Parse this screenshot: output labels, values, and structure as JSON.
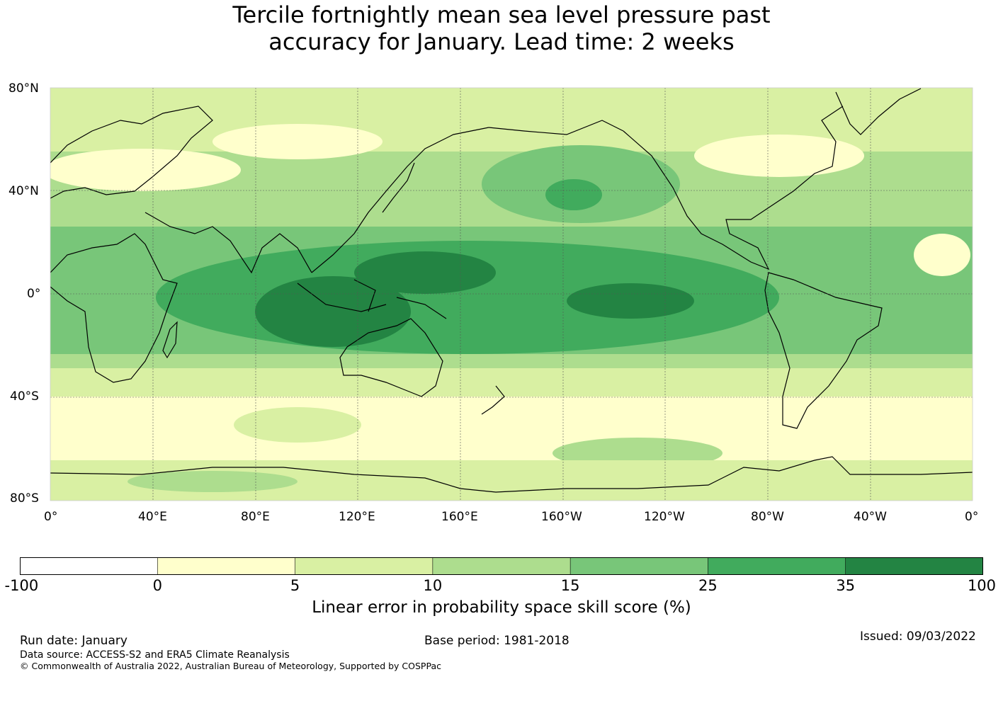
{
  "title_line1": "Tercile fortnightly mean sea level pressure past",
  "title_line2": "accuracy for January. Lead time: 2 weeks",
  "map": {
    "lat_labels": [
      "80°N",
      "40°N",
      "0°",
      "40°S",
      "80°S"
    ],
    "lon_labels": [
      "0°",
      "40°E",
      "80°E",
      "120°E",
      "160°E",
      "160°W",
      "120°W",
      "80°W",
      "40°W",
      "0°"
    ],
    "projection": "equirectangular, 0° to 360° longitude, 80°S to 80°N",
    "gridlines": true,
    "coastlines": true,
    "skill_pattern_note": "highest skill (25–35%+) over tropical Indian Ocean, Maritime Continent and equatorial Pacific; low skill (0–5%) over Southern Ocean ~40–60°S and parts of northern mid-latitudes"
  },
  "colorbar": {
    "boundaries": [
      "-100",
      "0",
      "5",
      "10",
      "15",
      "25",
      "35",
      "100"
    ],
    "colors": [
      "#ffffff",
      "#ffffcc",
      "#d9f0a3",
      "#addd8e",
      "#78c679",
      "#41ab5d",
      "#238443"
    ],
    "label": "Linear error in probability space skill score (%)"
  },
  "footer": {
    "run_date": "Run date: January",
    "base_period": "Base period: 1981-2018",
    "issued": "Issued: 09/03/2022",
    "data_source": "Data source: ACCESS-S2 and ERA5 Climate Reanalysis",
    "copyright": "© Commonwealth of Australia 2022, Australian Bureau of Meteorology, Supported by COSPPac"
  }
}
